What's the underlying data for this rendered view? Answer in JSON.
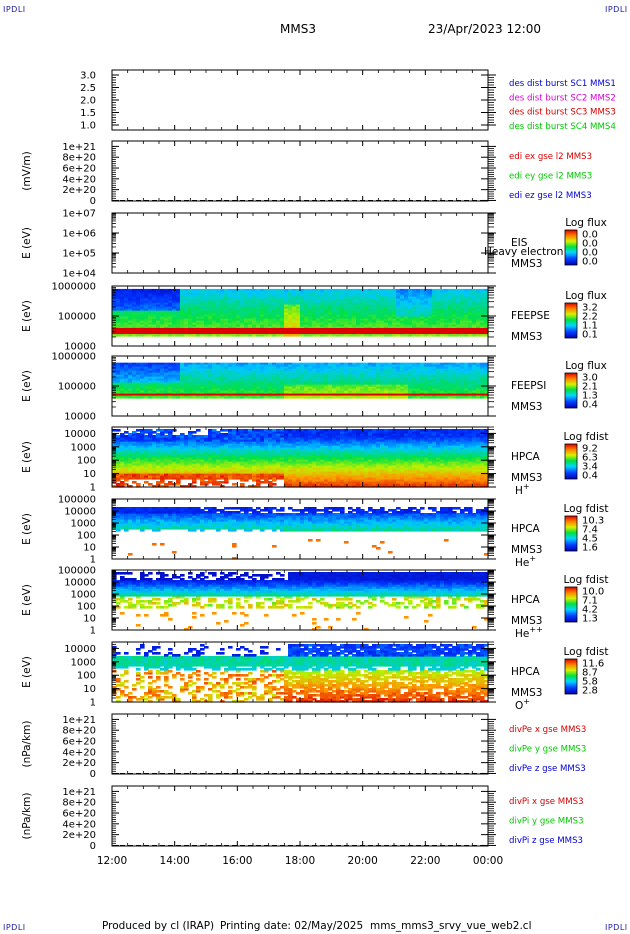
{
  "header": {
    "corner_label": "IPDLI",
    "spacecraft": "MMS3",
    "date": "23/Apr/2023 12:00"
  },
  "footer": {
    "produced": "Produced by cl (IRAP)",
    "printing": "Printing date: 02/May/2025",
    "script": "mms_mms3_srvy_vue_web2.cl"
  },
  "colors": {
    "blue": "#0000d6",
    "magenta": "#d600d6",
    "red": "#d60000",
    "green": "#00c800"
  },
  "chart_data": [
    {
      "id": "dist-burst",
      "type": "line",
      "ylabel": "",
      "ylim": [
        0.8,
        3.2
      ],
      "yticks": [
        "3.0",
        "2.5",
        "2.0",
        "1.5",
        "1.0"
      ],
      "ytick_values": [
        3.0,
        2.5,
        2.0,
        1.5,
        1.0
      ],
      "legend": [
        {
          "text": "des dist burst SC1 MMS1",
          "color": "#0000d6"
        },
        {
          "text": "des dist burst SC2 MMS2",
          "color": "#d600d6"
        },
        {
          "text": "des dist burst SC3 MMS3",
          "color": "#d60000"
        },
        {
          "text": "des dist burst SC4 MMS4",
          "color": "#00c800"
        }
      ]
    },
    {
      "id": "edi-e",
      "type": "line",
      "ylabel": "(mV/m)",
      "ylim": [
        -1e+19,
        1.1e+21
      ],
      "yticks": [
        "1e+21",
        "8e+20",
        "6e+20",
        "4e+20",
        "2e+20",
        "0"
      ],
      "ytick_values": [
        1e+21,
        8e+20,
        6e+20,
        4e+20,
        2e+20,
        0
      ],
      "zero_dashed": true,
      "legend": [
        {
          "text": "edi ex gse l2 MMS3",
          "color": "#d60000"
        },
        {
          "text": "edi ey gse l2 MMS3",
          "color": "#00c800"
        },
        {
          "text": "edi ez gse l2 MMS3",
          "color": "#0000d6"
        }
      ]
    },
    {
      "id": "eis",
      "type": "heatmap",
      "ylabel": "E (eV)",
      "log": true,
      "ylim": [
        10000.0,
        10000000.0
      ],
      "yticks": [
        "1e+07",
        "1e+06",
        "1e+05",
        "1e+04"
      ],
      "ytick_values": [
        10000000.0,
        1000000.0,
        100000.0,
        10000.0
      ],
      "instrument": [
        "EIS",
        "MMS3"
      ],
      "overlay": "Heavy electron to",
      "cbar_title": "Log flux",
      "cbar_ticks": [
        "0.0",
        "0.0",
        "0.0",
        "0.0"
      ],
      "empty": true
    },
    {
      "id": "feeps-e",
      "type": "heatmap",
      "ylabel": "E (eV)",
      "log": true,
      "ylim": [
        10000.0,
        1000000.0
      ],
      "yticks": [
        "1000000",
        "100000",
        "10000"
      ],
      "ytick_values": [
        1000000.0,
        100000.0,
        10000.0
      ],
      "instrument": [
        "FEEPSE",
        "MMS3"
      ],
      "cbar_title": "Log flux",
      "cbar_ticks": [
        "3.2",
        "2.2",
        "1.1",
        "0.1"
      ],
      "band": {
        "low": 25000,
        "high": 40000
      },
      "top_cut": 800000,
      "style": "electron"
    },
    {
      "id": "feeps-i",
      "type": "heatmap",
      "ylabel": "E (eV)",
      "log": true,
      "ylim": [
        10000.0,
        1000000.0
      ],
      "yticks": [
        "1000000",
        "100000",
        "10000"
      ],
      "ytick_values": [
        1000000.0,
        100000.0,
        10000.0
      ],
      "instrument": [
        "FEEPSI",
        "MMS3"
      ],
      "cbar_title": "Log flux",
      "cbar_ticks": [
        "3.0",
        "2.1",
        "1.3",
        "0.4"
      ],
      "band": {
        "low": 48000,
        "high": 56000
      },
      "top_cut": 600000,
      "style": "ion"
    },
    {
      "id": "hpca-h",
      "type": "heatmap",
      "ylabel": "E (eV)",
      "log": true,
      "ylim": [
        1,
        30000
      ],
      "yticks": [
        "10000",
        "1000",
        "100",
        "10",
        "1"
      ],
      "ytick_values": [
        10000,
        1000,
        100,
        10,
        1
      ],
      "instrument": [
        "HPCA",
        "MMS3"
      ],
      "species": "H",
      "charge": "+",
      "cbar_title": "Log fdist",
      "cbar_ticks": [
        "9.2",
        "6.3",
        "3.4",
        "0.4"
      ],
      "style": "h"
    },
    {
      "id": "hpca-he",
      "type": "heatmap",
      "ylabel": "E (eV)",
      "log": true,
      "ylim": [
        1,
        100000
      ],
      "yticks": [
        "100000",
        "10000",
        "1000",
        "100",
        "10",
        "1"
      ],
      "ytick_values": [
        100000,
        10000,
        1000,
        100,
        10,
        1
      ],
      "instrument": [
        "HPCA",
        "MMS3"
      ],
      "species": "He",
      "charge": "+",
      "cbar_title": "Log fdist",
      "cbar_ticks": [
        "10.3",
        "7.4",
        "4.5",
        "1.6"
      ],
      "style": "he"
    },
    {
      "id": "hpca-hepp",
      "type": "heatmap",
      "ylabel": "E (eV)",
      "log": true,
      "ylim": [
        1,
        100000
      ],
      "yticks": [
        "100000",
        "10000",
        "1000",
        "100",
        "10",
        "1"
      ],
      "ytick_values": [
        100000,
        10000,
        1000,
        100,
        10,
        1
      ],
      "instrument": [
        "HPCA",
        "MMS3"
      ],
      "species": "He",
      "charge": "++",
      "cbar_title": "Log fdist",
      "cbar_ticks": [
        "10.0",
        "7.1",
        "4.2",
        "1.3"
      ],
      "style": "hepp"
    },
    {
      "id": "hpca-o",
      "type": "heatmap",
      "ylabel": "E (eV)",
      "log": true,
      "ylim": [
        1,
        30000
      ],
      "yticks": [
        "10000",
        "1000",
        "100",
        "10",
        "1"
      ],
      "ytick_values": [
        10000,
        1000,
        100,
        10,
        1
      ],
      "instrument": [
        "HPCA",
        "MMS3"
      ],
      "species": "O",
      "charge": "+",
      "cbar_title": "Log fdist",
      "cbar_ticks": [
        "11.6",
        "8.7",
        "5.8",
        "2.8"
      ],
      "style": "o"
    },
    {
      "id": "divpe",
      "type": "line",
      "ylabel": "(nPa/km)",
      "ylim": [
        -1e+19,
        1.1e+21
      ],
      "yticks": [
        "1e+21",
        "8e+20",
        "6e+20",
        "4e+20",
        "2e+20",
        "0"
      ],
      "ytick_values": [
        1e+21,
        8e+20,
        6e+20,
        4e+20,
        2e+20,
        0
      ],
      "zero_dashed": true,
      "legend": [
        {
          "text": "divPe x gse MMS3",
          "color": "#d60000"
        },
        {
          "text": "divPe y gse MMS3",
          "color": "#00c800"
        },
        {
          "text": "divPe z gse MMS3",
          "color": "#0000d6"
        }
      ]
    },
    {
      "id": "divpi",
      "type": "line",
      "ylabel": "(nPa/km)",
      "ylim": [
        -1e+19,
        1.1e+21
      ],
      "yticks": [
        "1e+21",
        "8e+20",
        "6e+20",
        "4e+20",
        "2e+20",
        "0"
      ],
      "ytick_values": [
        1e+21,
        8e+20,
        6e+20,
        4e+20,
        2e+20,
        0
      ],
      "zero_dashed": true,
      "legend": [
        {
          "text": "divPi x gse MMS3",
          "color": "#d60000"
        },
        {
          "text": "divPi y gse MMS3",
          "color": "#00c800"
        },
        {
          "text": "divPi z gse MMS3",
          "color": "#0000d6"
        }
      ]
    }
  ],
  "time_axis": {
    "labels": [
      "12:00",
      "14:00",
      "16:00",
      "18:00",
      "20:00",
      "22:00",
      "00:00"
    ],
    "hours": [
      12,
      14,
      16,
      18,
      20,
      22,
      24
    ],
    "start_hour": 12,
    "end_hour": 24
  }
}
